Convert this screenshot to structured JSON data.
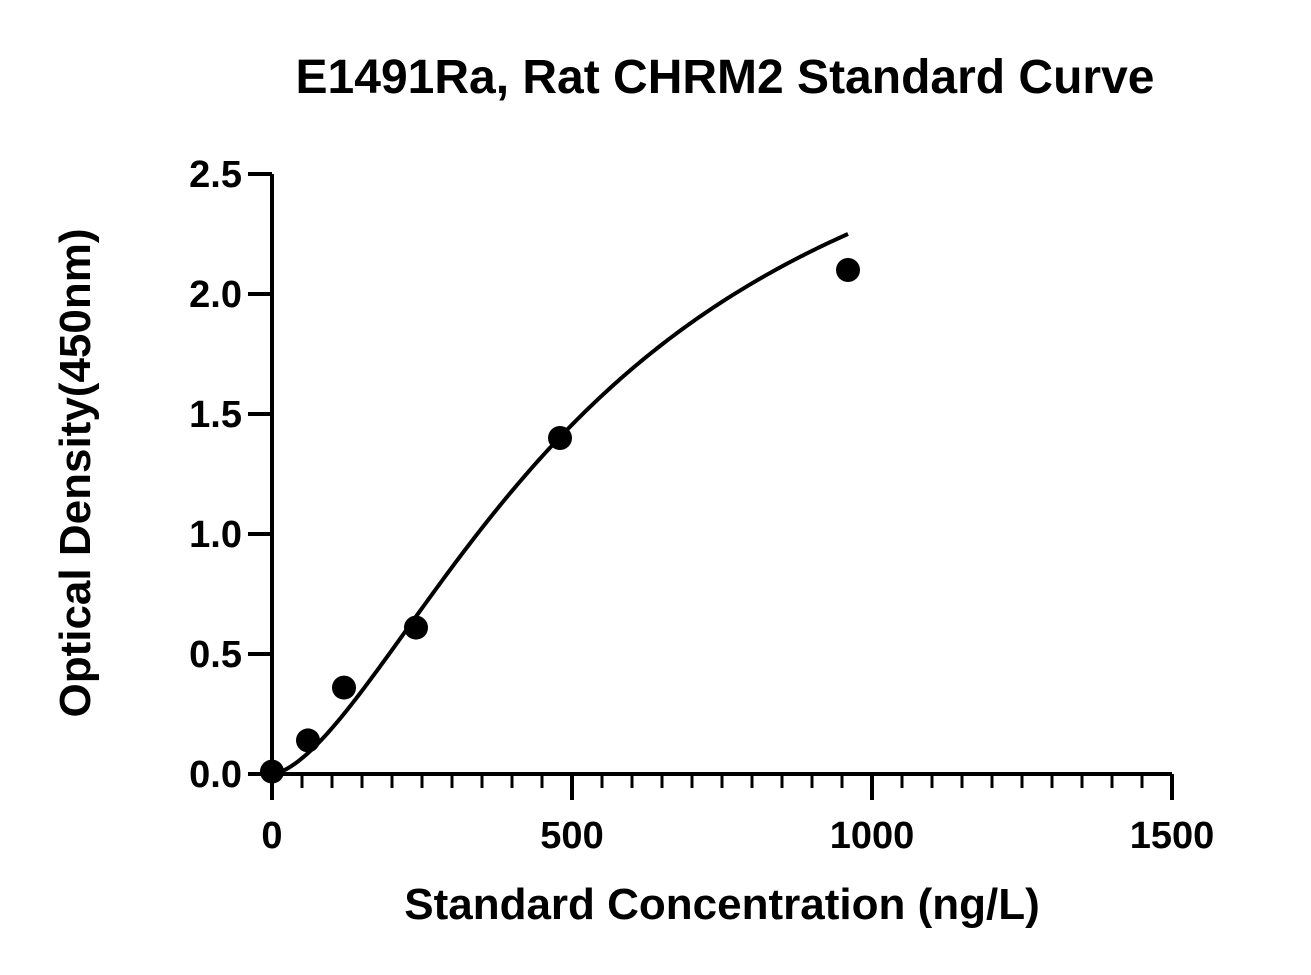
{
  "chart_data": {
    "type": "scatter",
    "title": "E1491Ra, Rat CHRM2 Standard Curve",
    "xlabel": "Standard Concentration (ng/L)",
    "ylabel": "Optical Density(450nm)",
    "xlim": [
      0,
      1500
    ],
    "ylim": [
      0,
      2.5
    ],
    "x_ticks": [
      0,
      500,
      1000,
      1500
    ],
    "x_tick_labels": [
      "0",
      "500",
      "1000",
      "1500"
    ],
    "y_ticks": [
      0,
      0.5,
      1.0,
      1.5,
      2.0,
      2.5
    ],
    "y_tick_labels": [
      "0.0",
      "0.5",
      "1.0",
      "1.5",
      "2.0",
      "2.5"
    ],
    "grid": false,
    "series": [
      {
        "points": [
          {
            "x": 0,
            "y": 0.01
          },
          {
            "x": 60,
            "y": 0.14
          },
          {
            "x": 120,
            "y": 0.36
          },
          {
            "x": 240,
            "y": 0.61
          },
          {
            "x": 480,
            "y": 1.4
          },
          {
            "x": 960,
            "y": 2.1
          }
        ],
        "marker_color": "#000000"
      }
    ],
    "fit_curve": {
      "type": "4PL",
      "x_range": [
        0,
        960
      ],
      "color": "#000000"
    }
  }
}
